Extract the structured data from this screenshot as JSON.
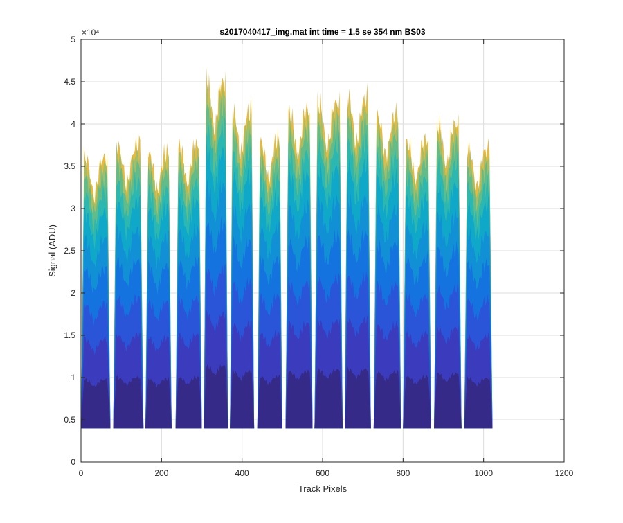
{
  "chart_data": {
    "type": "area",
    "title": "s2017040417_img.mat int time = 1.5 se  354 nm BS03",
    "xlabel": "Track Pixels",
    "ylabel": "Signal (ADU)",
    "xlim": [
      0,
      1200
    ],
    "ylim": [
      0,
      50000
    ],
    "xticks": [
      0,
      200,
      400,
      600,
      800,
      1000,
      1200
    ],
    "xtick_labels": [
      "0",
      "200",
      "400",
      "600",
      "800",
      "1000",
      "1200"
    ],
    "yticks": [
      0,
      5000,
      10000,
      15000,
      20000,
      25000,
      30000,
      35000,
      40000,
      45000,
      50000
    ],
    "ytick_labels": [
      "0",
      "0.5",
      "1",
      "1.5",
      "2",
      "2.5",
      "3",
      "3.5",
      "4",
      "4.5",
      "5"
    ],
    "y_exponent_label": "×10⁴",
    "grid": true,
    "baseline": 4000,
    "stripes": [
      {
        "x0": 0,
        "x1": 73,
        "peak": 36000
      },
      {
        "x0": 80,
        "x1": 155,
        "peak": 37500
      },
      {
        "x0": 160,
        "x1": 225,
        "peak": 36500
      },
      {
        "x0": 235,
        "x1": 300,
        "peak": 37500
      },
      {
        "x0": 305,
        "x1": 365,
        "peak": 45000
      },
      {
        "x0": 370,
        "x1": 430,
        "peak": 41500
      },
      {
        "x0": 438,
        "x1": 500,
        "peak": 38000
      },
      {
        "x0": 508,
        "x1": 575,
        "peak": 41500
      },
      {
        "x0": 580,
        "x1": 650,
        "peak": 42500
      },
      {
        "x0": 655,
        "x1": 720,
        "peak": 43000
      },
      {
        "x0": 727,
        "x1": 795,
        "peak": 41000
      },
      {
        "x0": 800,
        "x1": 870,
        "peak": 38000
      },
      {
        "x0": 877,
        "x1": 945,
        "peak": 40000
      },
      {
        "x0": 952,
        "x1": 1022,
        "peak": 37000
      }
    ],
    "layer_colors": [
      "#352a87",
      "#3b3bbd",
      "#2a55d8",
      "#1573e0",
      "#1290d6",
      "#10a8c9",
      "#2cb7b0",
      "#62bc8a",
      "#a5bd66",
      "#e7ba3f"
    ],
    "layer_fractions": [
      0.18,
      0.33,
      0.46,
      0.59,
      0.7,
      0.8,
      0.87,
      0.93,
      0.97,
      1.0
    ]
  }
}
